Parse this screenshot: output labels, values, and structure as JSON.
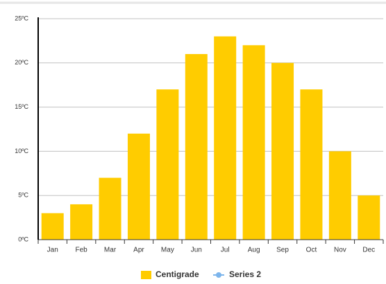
{
  "chart_data": {
    "type": "bar",
    "categories": [
      "Jan",
      "Feb",
      "Mar",
      "Apr",
      "May",
      "Jun",
      "Jul",
      "Aug",
      "Sep",
      "Oct",
      "Nov",
      "Dec"
    ],
    "series": [
      {
        "name": "Centigrade",
        "color": "#ffcc00",
        "values": [
          3,
          4,
          7,
          12,
          17,
          21,
          23,
          22,
          20,
          17,
          10,
          5
        ]
      },
      {
        "name": "Series 2",
        "color": "#7cb5ec",
        "values": [
          null,
          null,
          null,
          null,
          null,
          null,
          null,
          null,
          null,
          null,
          null,
          null
        ]
      }
    ],
    "ylim": [
      0,
      25
    ],
    "yticks": [
      {
        "value": 0,
        "label": "0ºC"
      },
      {
        "value": 5,
        "label": "5ºC"
      },
      {
        "value": 10,
        "label": "10ºC"
      },
      {
        "value": 15,
        "label": "15ºC"
      },
      {
        "value": 20,
        "label": "20ºC"
      },
      {
        "value": 25,
        "label": "25ºC"
      }
    ],
    "grid": true
  }
}
